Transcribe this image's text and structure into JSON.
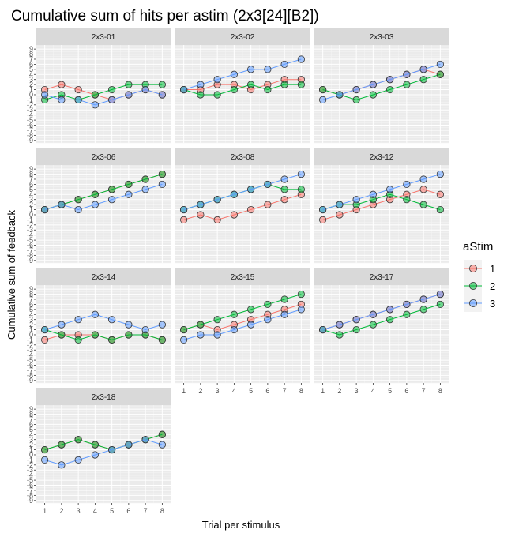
{
  "chart_data": {
    "type": "line",
    "title": "Cumulative sum of hits per astim (2x3[24][B2])",
    "xlabel": "Trial per stimulus",
    "ylabel": "Cumulative sum of feedback",
    "x": [
      1,
      2,
      3,
      4,
      5,
      6,
      7,
      8
    ],
    "xlim": [
      0.5,
      8.5
    ],
    "ylim": [
      -9.5,
      9.8
    ],
    "yticks": [
      9,
      8,
      7,
      6,
      5,
      4,
      3,
      2,
      1,
      0,
      -1,
      -2,
      -3,
      -4,
      -5,
      -6,
      -7,
      -8,
      -9
    ],
    "grid": true,
    "legend": {
      "title": "aStim",
      "placement": "right",
      "entries": [
        "1",
        "2",
        "3"
      ]
    },
    "colors": {
      "1": "#f8766d",
      "2": "#00ba38",
      "3": "#619cff"
    },
    "facets": [
      {
        "label": "2x3-01",
        "series": [
          {
            "name": "1",
            "values": [
              1,
              2,
              1,
              0,
              -1,
              0,
              1,
              0
            ]
          },
          {
            "name": "2",
            "values": [
              -1,
              0,
              -1,
              0,
              1,
              2,
              2,
              2
            ]
          },
          {
            "name": "3",
            "values": [
              0,
              -1,
              -1,
              -2,
              -1,
              0,
              1,
              0
            ]
          }
        ]
      },
      {
        "label": "2x3-02",
        "series": [
          {
            "name": "1",
            "values": [
              1,
              1,
              2,
              2,
              1,
              2,
              3,
              3
            ]
          },
          {
            "name": "2",
            "values": [
              1,
              0,
              0,
              1,
              2,
              1,
              2,
              2
            ]
          },
          {
            "name": "3",
            "values": [
              1,
              2,
              3,
              4,
              5,
              5,
              6,
              7
            ]
          }
        ]
      },
      {
        "label": "2x3-03",
        "series": [
          {
            "name": "1",
            "values": [
              1,
              0,
              1,
              2,
              3,
              4,
              5,
              4
            ]
          },
          {
            "name": "2",
            "values": [
              1,
              0,
              -1,
              0,
              1,
              2,
              3,
              4
            ]
          },
          {
            "name": "3",
            "values": [
              -1,
              0,
              1,
              2,
              3,
              4,
              5,
              6
            ]
          }
        ]
      },
      {
        "label": "2x3-06",
        "series": [
          {
            "name": "1",
            "values": [
              1,
              2,
              3,
              4,
              5,
              6,
              7,
              8
            ]
          },
          {
            "name": "2",
            "values": [
              1,
              2,
              3,
              4,
              5,
              6,
              7,
              8
            ]
          },
          {
            "name": "3",
            "values": [
              1,
              2,
              1,
              2,
              3,
              4,
              5,
              6
            ]
          }
        ]
      },
      {
        "label": "2x3-08",
        "series": [
          {
            "name": "1",
            "values": [
              -1,
              0,
              -1,
              0,
              1,
              2,
              3,
              4
            ]
          },
          {
            "name": "2",
            "values": [
              1,
              2,
              3,
              4,
              5,
              6,
              5,
              5
            ]
          },
          {
            "name": "3",
            "values": [
              1,
              2,
              3,
              4,
              5,
              6,
              7,
              8
            ]
          }
        ]
      },
      {
        "label": "2x3-12",
        "series": [
          {
            "name": "1",
            "values": [
              -1,
              0,
              1,
              2,
              3,
              4,
              5,
              4
            ]
          },
          {
            "name": "2",
            "values": [
              1,
              2,
              2,
              3,
              4,
              3,
              2,
              1
            ]
          },
          {
            "name": "3",
            "values": [
              1,
              2,
              3,
              4,
              5,
              6,
              7,
              8
            ]
          }
        ]
      },
      {
        "label": "2x3-14",
        "series": [
          {
            "name": "1",
            "values": [
              -1,
              0,
              0,
              0,
              -1,
              0,
              0,
              -1
            ]
          },
          {
            "name": "2",
            "values": [
              1,
              0,
              -1,
              0,
              -1,
              0,
              0,
              -1
            ]
          },
          {
            "name": "3",
            "values": [
              1,
              2,
              3,
              4,
              3,
              2,
              1,
              2
            ]
          }
        ]
      },
      {
        "label": "2x3-15",
        "series": [
          {
            "name": "1",
            "values": [
              1,
              2,
              1,
              2,
              3,
              4,
              5,
              6
            ]
          },
          {
            "name": "2",
            "values": [
              1,
              2,
              3,
              4,
              5,
              6,
              7,
              8
            ]
          },
          {
            "name": "3",
            "values": [
              -1,
              0,
              0,
              1,
              2,
              3,
              4,
              5
            ]
          }
        ]
      },
      {
        "label": "2x3-17",
        "series": [
          {
            "name": "1",
            "values": [
              1,
              2,
              3,
              4,
              5,
              6,
              7,
              8
            ]
          },
          {
            "name": "2",
            "values": [
              1,
              0,
              1,
              2,
              3,
              4,
              5,
              6
            ]
          },
          {
            "name": "3",
            "values": [
              1,
              2,
              3,
              4,
              5,
              6,
              7,
              8
            ]
          }
        ]
      },
      {
        "label": "2x3-18",
        "series": [
          {
            "name": "1",
            "values": [
              1,
              2,
              3,
              2,
              1,
              2,
              3,
              4
            ]
          },
          {
            "name": "2",
            "values": [
              1,
              2,
              3,
              2,
              1,
              2,
              3,
              4
            ]
          },
          {
            "name": "3",
            "values": [
              -1,
              -2,
              -1,
              0,
              1,
              2,
              3,
              2
            ]
          }
        ]
      }
    ]
  }
}
